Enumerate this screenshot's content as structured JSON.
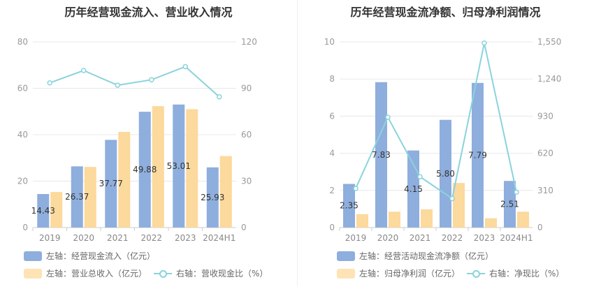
{
  "charts": [
    {
      "title": "历年经营现金流入、营业收入情况",
      "legend": [
        "左轴：经营现金流入（亿元）",
        "左轴：营业总收入（亿元）",
        "右轴：营收现金比（%）"
      ]
    },
    {
      "title": "历年经营现金流净额、归母净利润情况",
      "legend": [
        "左轴：经营活动现金流净额（亿元）",
        "左轴：归母净利润（亿元）",
        "右轴：净现比（%）"
      ]
    }
  ],
  "colors": {
    "bar_primary": "#8eaedd",
    "bar_secondary": "#fcd99c",
    "line": "#8ad3dc",
    "axis_text": "#999999",
    "grid": "#e8e8e8"
  },
  "chart_data": [
    {
      "type": "bar",
      "title": "历年经营现金流入、营业收入情况",
      "categories": [
        "2019",
        "2020",
        "2021",
        "2022",
        "2023",
        "2024H1"
      ],
      "left_axis": {
        "min": 0,
        "max": 80,
        "ticks": [
          "0",
          "20",
          "40",
          "60",
          "80"
        ]
      },
      "right_axis": {
        "min": 0,
        "max": 120,
        "ticks": [
          "0",
          "30",
          "60",
          "90",
          "120"
        ]
      },
      "series": [
        {
          "name": "左轴：经营现金流入（亿元）",
          "axis": "left",
          "kind": "bar",
          "values": [
            14.43,
            26.37,
            37.77,
            49.88,
            53.01,
            25.93
          ],
          "labels": [
            "14.43",
            "26.37",
            "37.77",
            "49.88",
            "53.01",
            "25.93"
          ]
        },
        {
          "name": "左轴：营业总收入（亿元）",
          "axis": "left",
          "kind": "bar",
          "values": [
            15.3,
            26.1,
            41.2,
            52.3,
            51.0,
            30.8
          ]
        },
        {
          "name": "右轴：营收现金比（%）",
          "axis": "right",
          "kind": "line",
          "values": [
            93.5,
            101.5,
            92.0,
            95.5,
            104.0,
            84.5
          ]
        }
      ],
      "grid": true,
      "legend_position": "bottom"
    },
    {
      "type": "bar",
      "title": "历年经营现金流净额、归母净利润情况",
      "categories": [
        "2019",
        "2020",
        "2021",
        "2022",
        "2023",
        "2024H1"
      ],
      "left_axis": {
        "min": 0,
        "max": 10,
        "ticks": [
          "0",
          "2",
          "4",
          "6",
          "8",
          "10"
        ]
      },
      "right_axis": {
        "min": 0,
        "max": 1550,
        "ticks": [
          "0",
          "310",
          "620",
          "930",
          "1,240",
          "1,550"
        ]
      },
      "series": [
        {
          "name": "左轴：经营活动现金流净额（亿元）",
          "axis": "left",
          "kind": "bar",
          "values": [
            2.35,
            7.83,
            4.15,
            5.8,
            7.79,
            2.51
          ],
          "labels": [
            "2.35",
            "7.83",
            "4.15",
            "5.80",
            "7.79",
            "2.51"
          ]
        },
        {
          "name": "左轴：归母净利润（亿元）",
          "axis": "left",
          "kind": "bar",
          "values": [
            0.72,
            0.85,
            0.98,
            2.4,
            0.5,
            0.85
          ]
        },
        {
          "name": "右轴：净现比（%）",
          "axis": "right",
          "kind": "line",
          "values": [
            326,
            921,
            424,
            242,
            1540,
            295
          ]
        }
      ],
      "grid": true,
      "legend_position": "bottom"
    }
  ]
}
